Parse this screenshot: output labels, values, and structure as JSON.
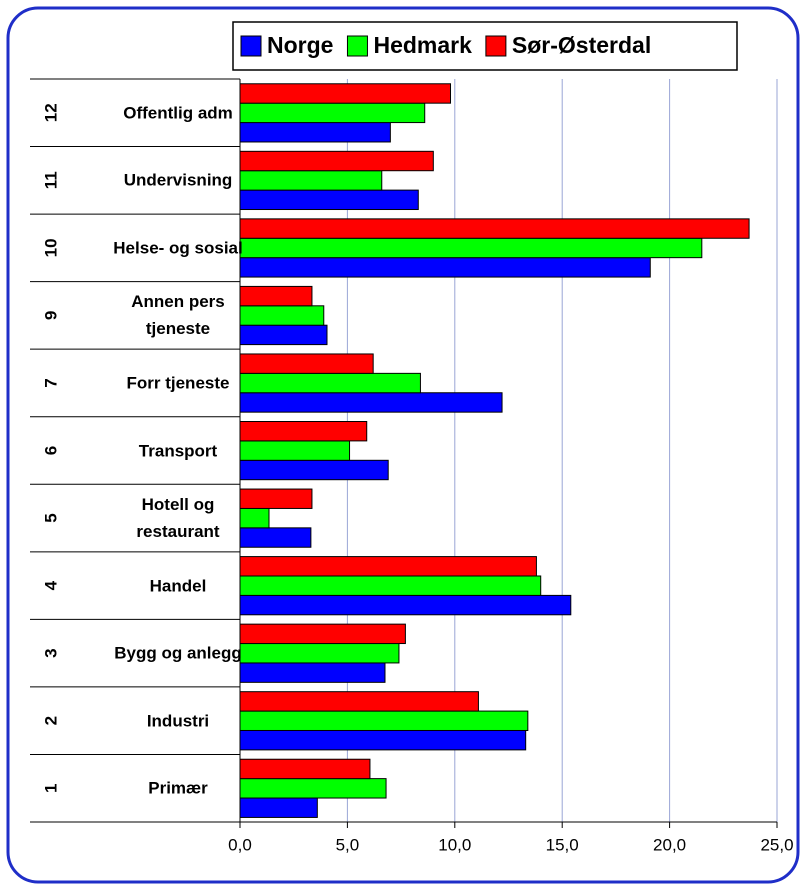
{
  "chart_data": {
    "type": "bar",
    "orientation": "horizontal",
    "category_codes": [
      "1",
      "2",
      "3",
      "4",
      "5",
      "6",
      "7",
      "9",
      "10",
      "11",
      "12"
    ],
    "categories": [
      "Primær",
      "Industri",
      "Bygg og anlegg",
      "Handel",
      "Hotell og restaurant",
      "Transport",
      "Forr tjeneste",
      "Annen pers tjeneste",
      "Helse- og sosial",
      "Undervisning",
      "Offentlig adm"
    ],
    "series": [
      {
        "name": "Norge",
        "color": "#0000ff",
        "values": [
          3.6,
          13.3,
          6.75,
          15.4,
          3.3,
          6.9,
          12.2,
          4.05,
          19.1,
          8.3,
          7.0
        ]
      },
      {
        "name": "Hedmark",
        "color": "#00ff00",
        "values": [
          6.8,
          13.4,
          7.4,
          14.0,
          1.35,
          5.1,
          8.4,
          3.9,
          21.5,
          6.6,
          8.6
        ]
      },
      {
        "name": "Sør-Østerdal",
        "color": "#ff0000",
        "values": [
          6.05,
          11.1,
          7.7,
          13.8,
          3.35,
          5.9,
          6.2,
          3.35,
          23.7,
          9.0,
          9.8
        ]
      }
    ],
    "xlim": [
      0,
      25
    ],
    "xticks": [
      {
        "value": 0,
        "label": "0,0"
      },
      {
        "value": 5,
        "label": "5,0"
      },
      {
        "value": 10,
        "label": "10,0"
      },
      {
        "value": 15,
        "label": "15,0"
      },
      {
        "value": 20,
        "label": "20,0"
      },
      {
        "value": 25,
        "label": "25,0"
      }
    ],
    "grid": true,
    "legend": "top"
  }
}
